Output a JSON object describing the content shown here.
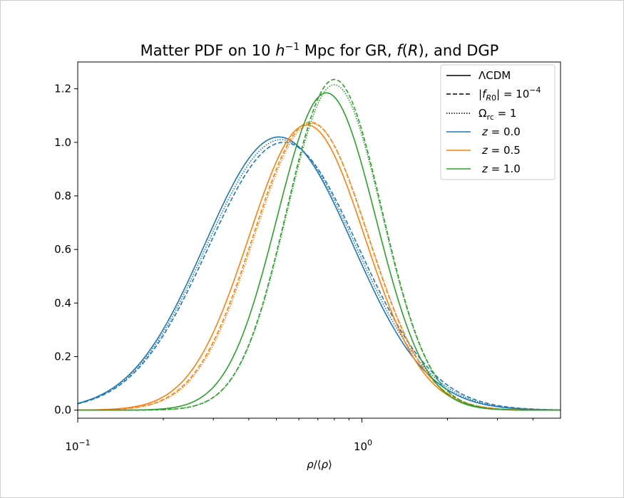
{
  "chart_data": {
    "type": "line",
    "title": "Matter PDF on 10 h⁻¹ Mpc for GR, f(R), and DGP",
    "xlabel": "ρ/⟨ρ⟩",
    "ylabel": "",
    "xscale": "log",
    "xlim": [
      0.1,
      5.0
    ],
    "ylim": [
      -0.03,
      1.3
    ],
    "yticks": [
      "0.0",
      "0.2",
      "0.4",
      "0.6",
      "0.8",
      "1.0",
      "1.2"
    ],
    "xticks": [
      "10⁻¹",
      "10⁰"
    ],
    "legend_position": "top-right",
    "legend": [
      {
        "label": "ΛCDM",
        "style": "solid",
        "color": "#000000"
      },
      {
        "label": "|f_R0| = 10⁻⁴",
        "style": "dashed",
        "color": "#000000"
      },
      {
        "label": "Ω_rc = 1",
        "style": "dotted",
        "color": "#000000"
      },
      {
        "label": "z = 0.0",
        "style": "solid",
        "color": "#1f77b4"
      },
      {
        "label": "z = 0.5",
        "style": "solid",
        "color": "#ff7f0e"
      },
      {
        "label": "z = 1.0",
        "style": "solid",
        "color": "#2ca02c"
      }
    ],
    "series": [
      {
        "model": "ΛCDM",
        "redshift": "z = 0.0",
        "color": "#1f77b4",
        "style": "solid",
        "peak_x": 0.51,
        "peak_y": 1.02,
        "sigma": 0.6
      },
      {
        "model": "|f_R0| = 10⁻⁴",
        "redshift": "z = 0.0",
        "color": "#1f77b4",
        "style": "dashed",
        "peak_x": 0.53,
        "peak_y": 1.0,
        "sigma": 0.61
      },
      {
        "model": "Ω_rc = 1",
        "redshift": "z = 0.0",
        "color": "#1f77b4",
        "style": "dotted",
        "peak_x": 0.52,
        "peak_y": 1.01,
        "sigma": 0.605
      },
      {
        "model": "ΛCDM",
        "redshift": "z = 0.5",
        "color": "#ff7f0e",
        "style": "solid",
        "peak_x": 0.64,
        "peak_y": 1.065,
        "sigma": 0.47
      },
      {
        "model": "|f_R0| = 10⁻⁴",
        "redshift": "z = 0.5",
        "color": "#ff7f0e",
        "style": "dashed",
        "peak_x": 0.66,
        "peak_y": 1.075,
        "sigma": 0.465
      },
      {
        "model": "Ω_rc = 1",
        "redshift": "z = 0.5",
        "color": "#ff7f0e",
        "style": "dotted",
        "peak_x": 0.665,
        "peak_y": 1.07,
        "sigma": 0.463
      },
      {
        "model": "ΛCDM",
        "redshift": "z = 1.0",
        "color": "#2ca02c",
        "style": "solid",
        "peak_x": 0.75,
        "peak_y": 1.185,
        "sigma": 0.4
      },
      {
        "model": "|f_R0| = 10⁻⁴",
        "redshift": "z = 1.0",
        "color": "#2ca02c",
        "style": "dashed",
        "peak_x": 0.8,
        "peak_y": 1.235,
        "sigma": 0.385
      },
      {
        "model": "Ω_rc = 1",
        "redshift": "z = 1.0",
        "color": "#2ca02c",
        "style": "dotted",
        "peak_x": 0.8,
        "peak_y": 1.215,
        "sigma": 0.385
      }
    ]
  }
}
